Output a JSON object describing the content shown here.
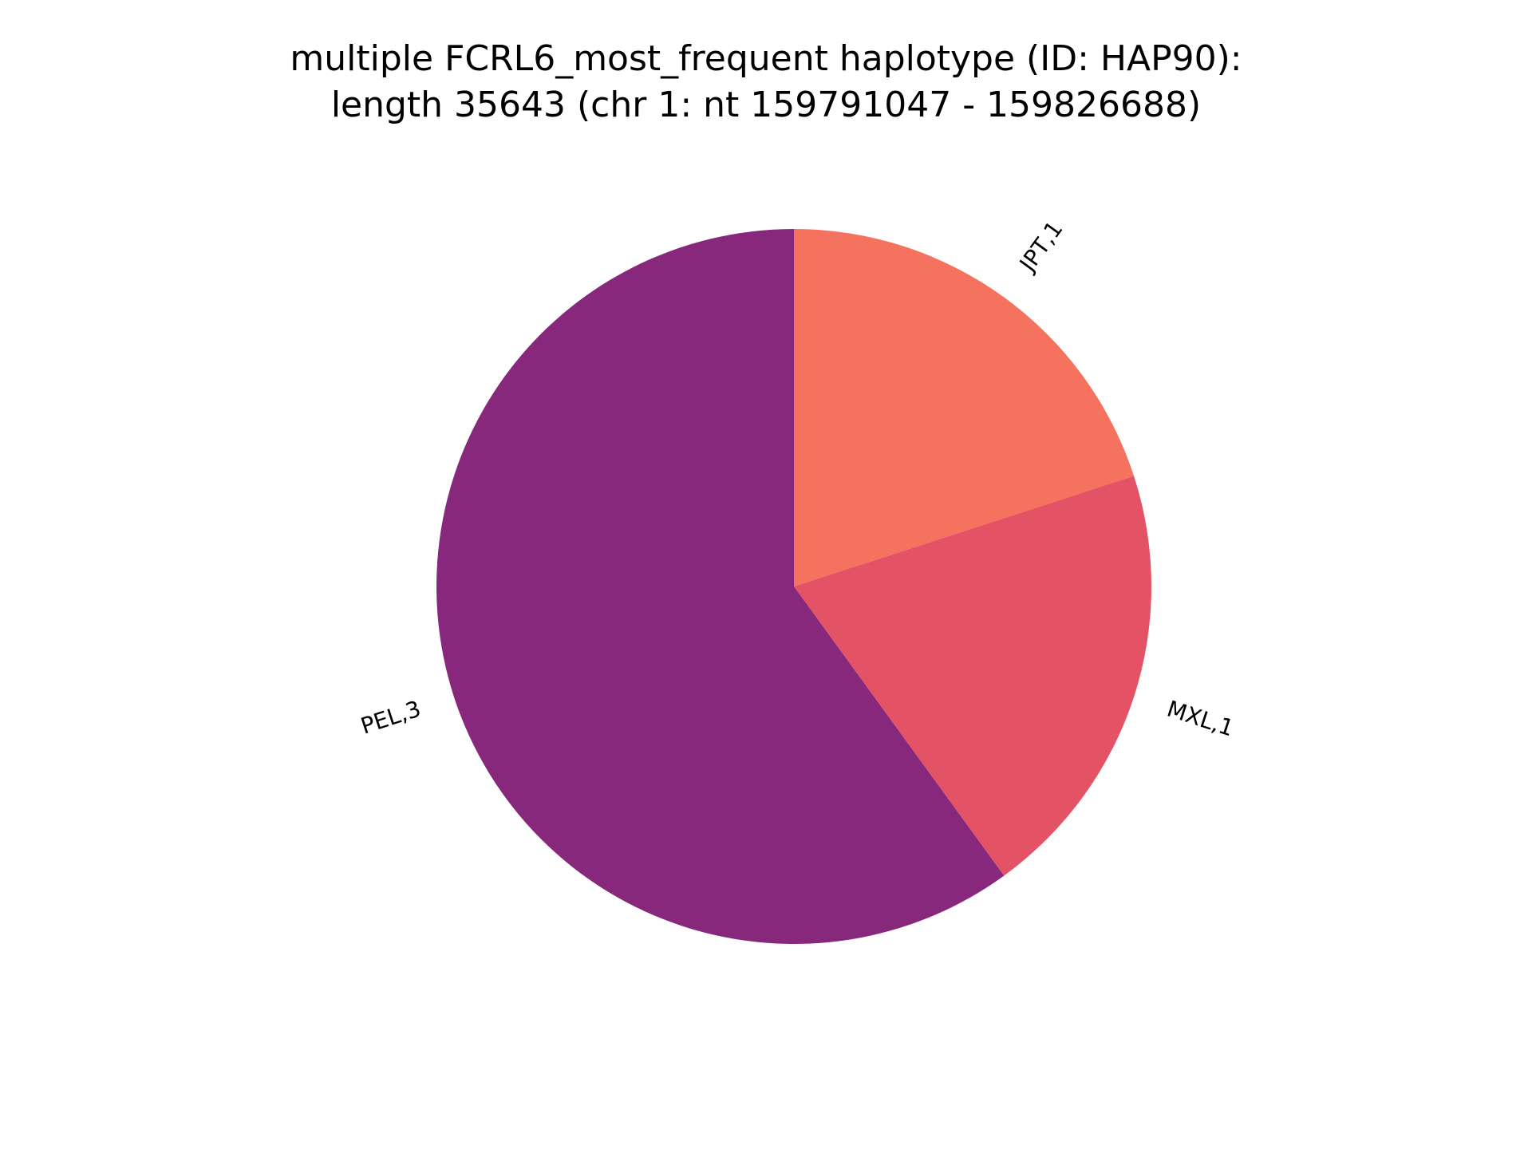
{
  "chart_data": {
    "type": "pie",
    "title_lines": [
      "multiple FCRL6_most_frequent haplotype (ID: HAP90):",
      "length 35643 (chr 1: nt 159791047 - 159826688)"
    ],
    "slices": [
      {
        "label": "JPT,1",
        "value": 1,
        "color": "#f4725e"
      },
      {
        "label": "MXL,1",
        "value": 1,
        "color": "#e45265"
      },
      {
        "label": "PEL,3",
        "value": 3,
        "color": "#88287d"
      }
    ],
    "start_angle_deg": 90,
    "direction": "clockwise",
    "labels_rotated": true
  }
}
